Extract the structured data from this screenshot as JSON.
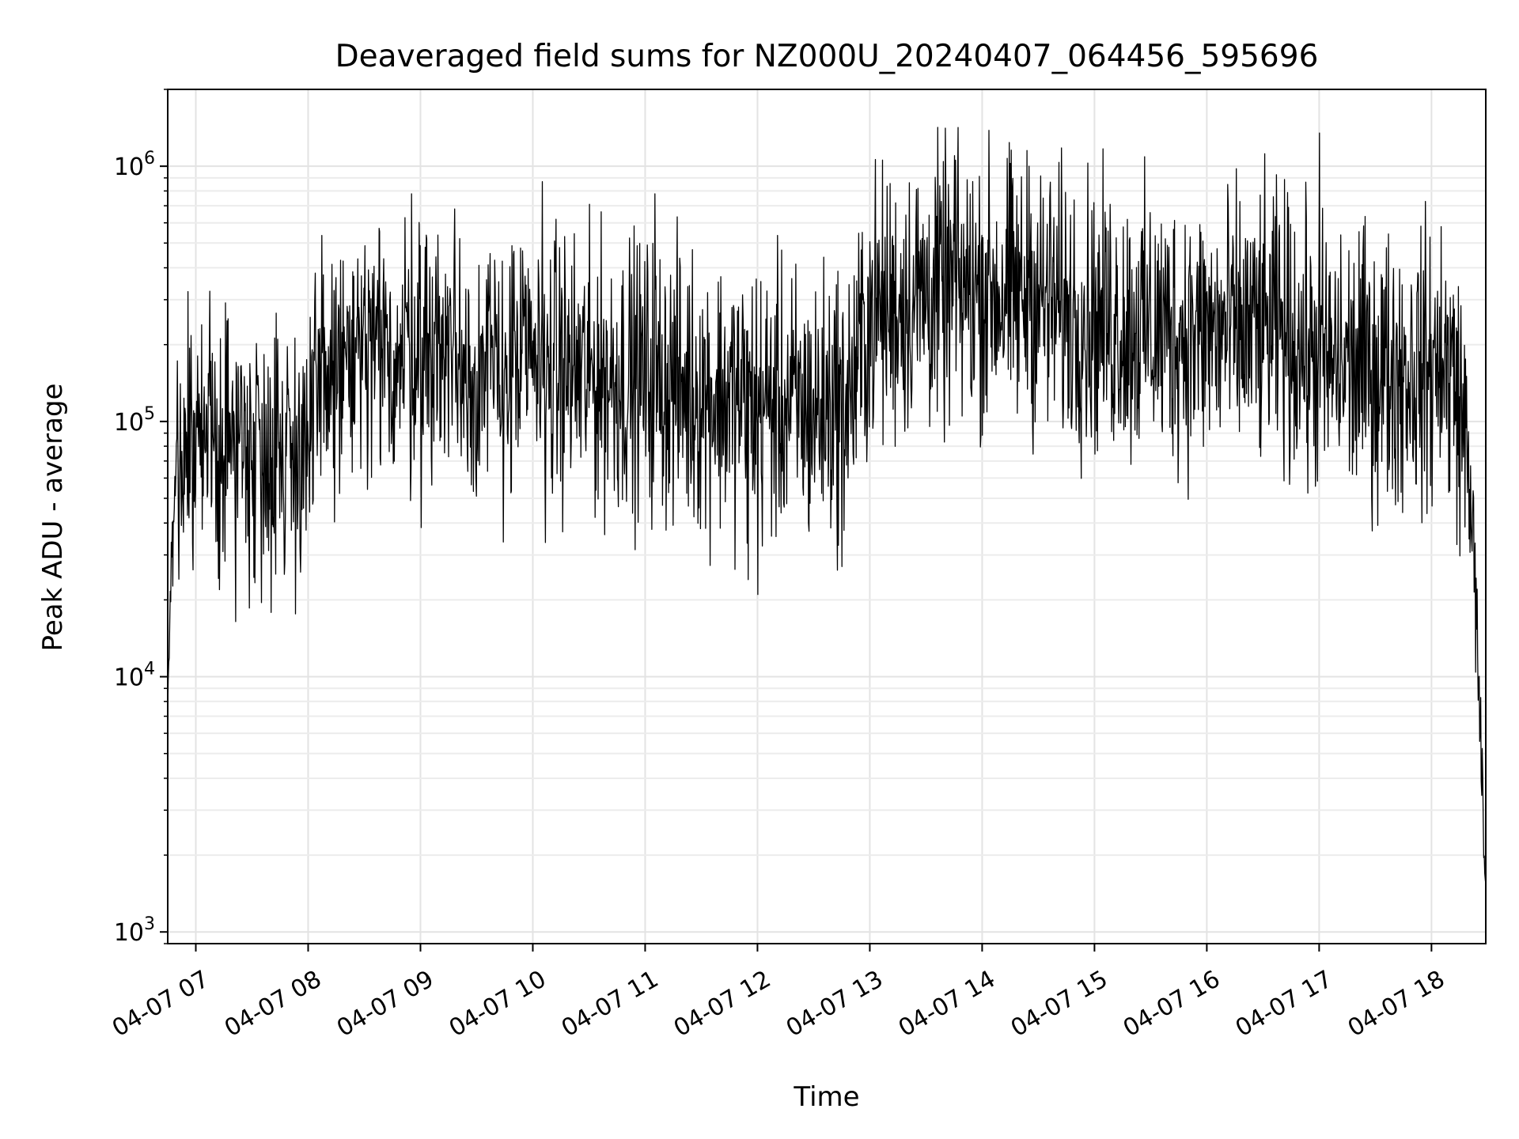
{
  "chart_data": {
    "type": "line",
    "title": "Deaveraged field sums for NZ000U_20240407_064456_595696",
    "xlabel": "Time",
    "ylabel": "Peak ADU - average",
    "x_axis": {
      "kind": "time",
      "range": [
        "2024-04-07 06:45",
        "2024-04-07 18:29"
      ],
      "ticks": [
        "2024-04-07 07:00",
        "2024-04-07 08:00",
        "2024-04-07 09:00",
        "2024-04-07 10:00",
        "2024-04-07 11:00",
        "2024-04-07 12:00",
        "2024-04-07 13:00",
        "2024-04-07 14:00",
        "2024-04-07 15:00",
        "2024-04-07 16:00",
        "2024-04-07 17:00",
        "2024-04-07 18:00"
      ],
      "tick_labels": [
        "04-07 07",
        "04-07 08",
        "04-07 09",
        "04-07 10",
        "04-07 11",
        "04-07 12",
        "04-07 13",
        "04-07 14",
        "04-07 15",
        "04-07 16",
        "04-07 17",
        "04-07 18"
      ]
    },
    "y_axis": {
      "scale": "log",
      "range": [
        900,
        2000000
      ],
      "ticks": [
        1000,
        10000,
        100000,
        1000000
      ],
      "tick_labels": [
        {
          "base": "10",
          "exp": "3"
        },
        {
          "base": "10",
          "exp": "4"
        },
        {
          "base": "10",
          "exp": "5"
        },
        {
          "base": "10",
          "exp": "6"
        }
      ]
    },
    "grid": true,
    "series": [
      {
        "color": "#000000",
        "points": [
          [
            "2024-04-07 06:45",
            8000
          ],
          [
            "2024-04-07 06:47",
            28000
          ],
          [
            "2024-04-07 06:50",
            70000
          ],
          [
            "2024-04-07 07:00",
            80000
          ],
          [
            "2024-04-07 07:15",
            85000
          ],
          [
            "2024-04-07 07:30",
            85000
          ],
          [
            "2024-04-07 07:45",
            80000
          ],
          [
            "2024-04-07 08:00",
            80000
          ],
          [
            "2024-04-07 08:10",
            160000
          ],
          [
            "2024-04-07 08:30",
            170000
          ],
          [
            "2024-04-07 09:00",
            190000
          ],
          [
            "2024-04-07 09:15",
            200000
          ],
          [
            "2024-04-07 09:30",
            150000
          ],
          [
            "2024-04-07 10:00",
            170000
          ],
          [
            "2024-04-07 10:30",
            150000
          ],
          [
            "2024-04-07 11:00",
            150000
          ],
          [
            "2024-04-07 11:30",
            130000
          ],
          [
            "2024-04-07 12:00",
            120000
          ],
          [
            "2024-04-07 12:30",
            110000
          ],
          [
            "2024-04-07 12:50",
            130000
          ],
          [
            "2024-04-07 13:00",
            260000
          ],
          [
            "2024-04-07 13:30",
            320000
          ],
          [
            "2024-04-07 14:00",
            330000
          ],
          [
            "2024-04-07 14:30",
            300000
          ],
          [
            "2024-04-07 15:00",
            250000
          ],
          [
            "2024-04-07 15:30",
            230000
          ],
          [
            "2024-04-07 16:00",
            220000
          ],
          [
            "2024-04-07 16:40",
            230000
          ],
          [
            "2024-04-07 17:00",
            170000
          ],
          [
            "2024-04-07 17:30",
            160000
          ],
          [
            "2024-04-07 18:00",
            160000
          ],
          [
            "2024-04-07 18:12",
            150000
          ],
          [
            "2024-04-07 18:18",
            90000
          ],
          [
            "2024-04-07 18:22",
            40000
          ],
          [
            "2024-04-07 18:25",
            10000
          ],
          [
            "2024-04-07 18:27",
            3500
          ],
          [
            "2024-04-07 18:29",
            1400
          ]
        ],
        "spikes": [
          [
            "2024-04-07 07:35",
            19500
          ],
          [
            "2024-04-07 08:55",
            780000
          ],
          [
            "2024-04-07 09:18",
            680000
          ],
          [
            "2024-04-07 10:05",
            870000
          ],
          [
            "2024-04-07 11:05",
            780000
          ],
          [
            "2024-04-07 11:55",
            24000
          ],
          [
            "2024-04-07 12:00",
            21000
          ],
          [
            "2024-04-07 12:45",
            27000
          ],
          [
            "2024-04-07 13:45",
            1100000
          ],
          [
            "2024-04-07 14:25",
            1000000
          ],
          [
            "2024-04-07 17:00",
            1350000
          ],
          [
            "2024-04-07 18:05",
            580000
          ]
        ]
      }
    ]
  }
}
